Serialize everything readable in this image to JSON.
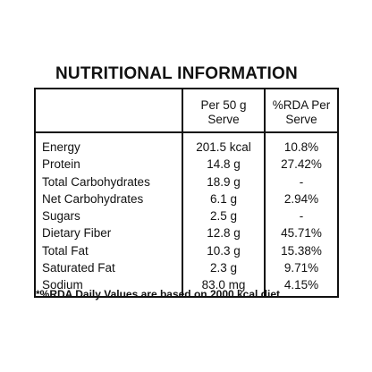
{
  "title": "NUTRITIONAL INFORMATION",
  "table": {
    "headers": {
      "name": "",
      "per_line1": "Per 50 g",
      "per_line2": "Serve",
      "rda_line1": "%RDA Per",
      "rda_line2": "Serve"
    },
    "rows": [
      {
        "name": "Energy",
        "per": "201.5 kcal",
        "rda": "10.8%"
      },
      {
        "name": "Protein",
        "per": "14.8 g",
        "rda": "27.42%"
      },
      {
        "name": "Total Carbohydrates",
        "per": "18.9 g",
        "rda": "-"
      },
      {
        "name": "Net Carbohydrates",
        "per": "6.1 g",
        "rda": "2.94%"
      },
      {
        "name": "Sugars",
        "per": "2.5 g",
        "rda": "-"
      },
      {
        "name": "Dietary Fiber",
        "per": "12.8 g",
        "rda": "45.71%"
      },
      {
        "name": "Total Fat",
        "per": "10.3 g",
        "rda": "15.38%"
      },
      {
        "name": "Saturated Fat",
        "per": "2.3 g",
        "rda": "9.71%"
      },
      {
        "name": "Sodium",
        "per": "83.0 mg",
        "rda": "4.15%"
      }
    ]
  },
  "footnote": "*%RDA Daily Values are based on 2000 kcal diet."
}
